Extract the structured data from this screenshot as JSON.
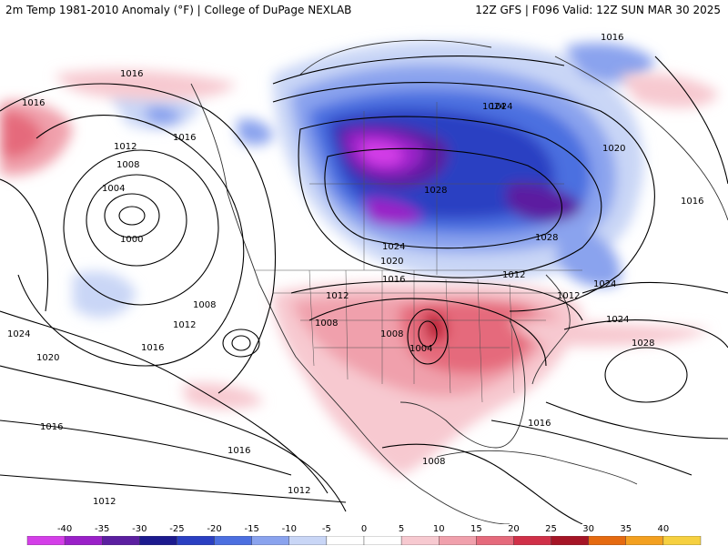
{
  "header": {
    "left": "2m Temp 1981-2010 Anomaly (°F) | College of DuPage NEXLAB",
    "right": "12Z GFS | F096 Valid: 12Z SUN MAR 30 2025"
  },
  "isobar_labels": [
    "1016",
    "1016",
    "1016",
    "1016",
    "1012",
    "1008",
    "1004",
    "1000",
    "1008",
    "1012",
    "1024",
    "1020",
    "1016",
    "1016",
    "1012",
    "1024",
    "1024",
    "1020",
    "1016",
    "1012",
    "1012",
    "1008",
    "1008",
    "1004",
    "1008",
    "1016",
    "1016",
    "1012",
    "1012",
    "1024",
    "1028",
    "1028",
    "1016",
    "1024",
    "1020",
    "1024",
    "1028"
  ],
  "colorbar": {
    "ticks": [
      "-40",
      "-35",
      "-30",
      "-25",
      "-20",
      "-15",
      "-10",
      "-5",
      "0",
      "5",
      "10",
      "15",
      "20",
      "25",
      "30",
      "35",
      "40"
    ],
    "colors": [
      "#d43ee8",
      "#9a20c8",
      "#5b1fa0",
      "#1c1a8e",
      "#2a3fc2",
      "#4c6fe0",
      "#8aa3ee",
      "#c9d6f6",
      "#ffffff",
      "#ffffff",
      "#f7c9d0",
      "#f0a0ac",
      "#e56a7c",
      "#d03048",
      "#a51526",
      "#e56a10",
      "#f3a020",
      "#f6d040"
    ],
    "units": "°F"
  }
}
